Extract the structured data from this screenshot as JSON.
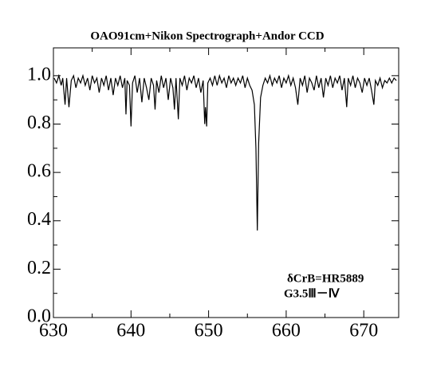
{
  "chart_data": {
    "type": "line",
    "title": "OAO91cm+Nikon Spectrograph+Andor CCD",
    "annotations": [
      "δCrB=HR5889",
      "G3.5Ⅲ－Ⅳ"
    ],
    "color": "#000000",
    "xlim": [
      630,
      674.5
    ],
    "ylim": [
      0,
      1.115
    ],
    "xticks": [
      630,
      640,
      650,
      660,
      670
    ],
    "xminor_ticks": [
      635,
      645,
      655,
      665
    ],
    "yticks": [
      {
        "value": 0,
        "label": "0.0"
      },
      0.2,
      0.4,
      0.6,
      0.8,
      {
        "value": 1,
        "label": "1.0"
      }
    ],
    "yminor_ticks": [
      0.1,
      0.3,
      0.5,
      0.7,
      0.9
    ],
    "x": [
      630.1,
      630.4,
      630.7,
      631.0,
      631.2,
      631.5,
      631.7,
      632.0,
      632.3,
      632.6,
      632.9,
      633.2,
      633.5,
      633.8,
      634.1,
      634.4,
      634.7,
      635.0,
      635.3,
      635.6,
      635.9,
      636.2,
      636.5,
      636.8,
      637.1,
      637.4,
      637.7,
      638.0,
      638.3,
      638.6,
      638.9,
      639.2,
      639.35,
      639.5,
      639.8,
      640.0,
      640.2,
      640.5,
      640.8,
      641.1,
      641.4,
      641.7,
      642.0,
      642.3,
      642.6,
      642.9,
      643.1,
      643.3,
      643.6,
      643.9,
      644.2,
      644.5,
      644.8,
      645.1,
      645.4,
      645.6,
      645.8,
      646.1,
      646.3,
      646.6,
      646.9,
      647.2,
      647.5,
      647.8,
      648.1,
      648.4,
      648.7,
      649.0,
      649.3,
      649.5,
      649.6,
      649.75,
      649.9,
      650.2,
      650.5,
      650.8,
      651.1,
      651.4,
      651.7,
      652.0,
      652.3,
      652.6,
      652.9,
      653.2,
      653.5,
      653.8,
      654.1,
      654.4,
      654.7,
      655.0,
      655.3,
      655.6,
      655.9,
      656.1,
      656.28,
      656.45,
      656.7,
      657.0,
      657.3,
      657.6,
      657.9,
      658.2,
      658.5,
      658.8,
      659.1,
      659.4,
      659.7,
      660.0,
      660.3,
      660.6,
      660.9,
      661.2,
      661.5,
      661.8,
      662.1,
      662.4,
      662.7,
      663.0,
      663.3,
      663.6,
      663.9,
      664.2,
      664.5,
      664.8,
      665.1,
      665.4,
      665.7,
      666.0,
      666.3,
      666.6,
      666.9,
      667.2,
      667.5,
      667.8,
      668.0,
      668.3,
      668.6,
      668.9,
      669.2,
      669.5,
      669.8,
      670.1,
      670.4,
      670.7,
      671.0,
      671.3,
      671.5,
      671.8,
      672.1,
      672.4,
      672.7,
      673.0,
      673.3,
      673.6,
      673.9,
      674.2
    ],
    "values": [
      0.99,
      0.97,
      1.0,
      0.96,
      0.99,
      0.88,
      0.99,
      0.87,
      0.98,
      1.0,
      0.95,
      0.99,
      0.97,
      1.0,
      0.96,
      0.99,
      0.94,
      1.0,
      0.97,
      0.99,
      0.93,
      0.99,
      0.96,
      1.0,
      0.94,
      0.99,
      0.92,
      0.99,
      0.96,
      1.0,
      0.95,
      0.99,
      0.84,
      0.98,
      0.96,
      0.79,
      0.97,
      1.0,
      0.93,
      0.99,
      0.89,
      0.99,
      0.95,
      0.9,
      0.99,
      0.96,
      0.86,
      0.98,
      0.93,
      1.0,
      0.95,
      0.99,
      0.9,
      0.99,
      0.95,
      0.86,
      0.99,
      0.82,
      0.99,
      0.96,
      1.0,
      0.94,
      0.99,
      0.97,
      1.0,
      0.95,
      0.99,
      0.93,
      0.98,
      0.8,
      0.87,
      0.79,
      0.97,
      0.99,
      0.96,
      1.0,
      0.96,
      1.0,
      0.97,
      0.99,
      0.95,
      1.0,
      0.97,
      0.99,
      0.96,
      0.99,
      0.97,
      1.0,
      0.95,
      0.99,
      0.96,
      0.94,
      0.88,
      0.7,
      0.36,
      0.72,
      0.91,
      0.96,
      0.99,
      0.97,
      1.0,
      0.96,
      0.99,
      0.97,
      1.0,
      0.95,
      0.99,
      0.97,
      1.0,
      0.96,
      0.99,
      0.95,
      0.88,
      0.99,
      0.96,
      1.0,
      0.93,
      0.99,
      0.97,
      0.94,
      1.0,
      0.95,
      0.99,
      0.91,
      0.99,
      0.96,
      1.0,
      0.95,
      0.99,
      0.97,
      1.0,
      0.94,
      0.99,
      0.87,
      0.99,
      0.96,
      1.0,
      0.95,
      0.99,
      0.97,
      0.93,
      0.99,
      0.96,
      0.99,
      0.94,
      0.88,
      0.98,
      0.96,
      0.99,
      0.95,
      0.98,
      0.97,
      0.99,
      0.97,
      0.99,
      0.98
    ]
  }
}
